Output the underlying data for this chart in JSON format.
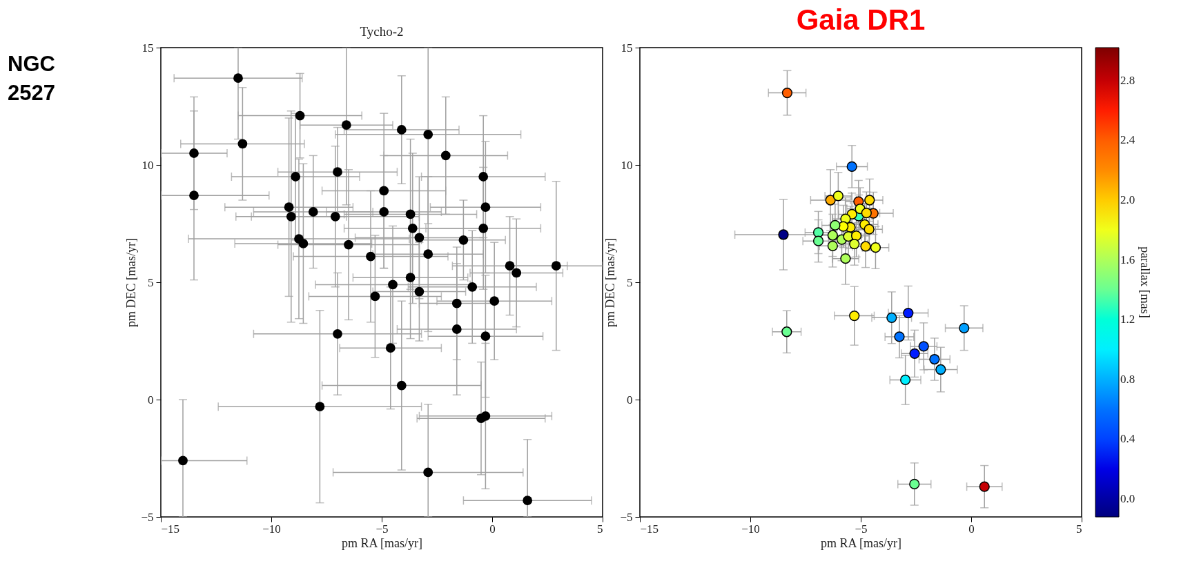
{
  "chart_data": [
    {
      "type": "scatter",
      "title": "Tycho-2",
      "xlabel": "pm RA [mas/yr]",
      "ylabel": "pm DEC [mas/yr]",
      "annotations": [
        "NGC 2527"
      ],
      "xlim": [
        -15,
        5
      ],
      "ylim": [
        -5,
        15
      ],
      "xticks": [
        -15,
        -10,
        -5,
        0,
        5
      ],
      "yticks": [
        -5,
        0,
        5,
        10,
        15
      ],
      "marker": "circle",
      "color": "#000000",
      "x": [
        -11.5,
        -13.5,
        -13.5,
        -11.3,
        -8.7,
        -6.6,
        -4.1,
        -2.9,
        -2.1,
        -8.9,
        -7.0,
        -0.4,
        -9.2,
        -9.1,
        -8.1,
        -7.1,
        -4.9,
        -4.9,
        -3.7,
        -3.6,
        -0.3,
        -0.4,
        -3.3,
        -8.75,
        -8.55,
        -6.5,
        -5.5,
        -2.9,
        -1.3,
        0.8,
        2.9,
        1.1,
        -5.3,
        -4.5,
        -3.7,
        -3.3,
        -0.9,
        -1.6,
        0.1,
        -1.6,
        -7.0,
        -4.6,
        -0.3,
        -4.1,
        -7.8,
        -0.3,
        -0.5,
        -14.0,
        -2.9,
        1.6
      ],
      "values": [
        13.7,
        10.5,
        8.7,
        10.9,
        12.1,
        11.7,
        11.5,
        11.3,
        10.4,
        9.5,
        9.7,
        9.5,
        8.2,
        7.8,
        8.0,
        7.8,
        8.9,
        8.0,
        7.9,
        7.3,
        8.2,
        7.3,
        6.9,
        6.85,
        6.65,
        6.6,
        6.1,
        6.2,
        6.8,
        5.7,
        5.7,
        5.4,
        4.4,
        4.9,
        5.2,
        4.6,
        4.8,
        4.1,
        4.2,
        3.0,
        2.8,
        2.2,
        2.7,
        0.6,
        -0.3,
        -0.7,
        -0.8,
        -2.6,
        -3.1,
        -4.3
      ],
      "errors": [
        [
          11.1,
          15
        ],
        2.4,
        3.6,
        2.4,
        1.8,
        [
          8.3,
          15
        ],
        2.3,
        [
          7.5,
          15
        ],
        2.5,
        2.7,
        1.9,
        2.6,
        3.8,
        4.5,
        2.4,
        3.0,
        3.3,
        2.4,
        3.2,
        3.2,
        2.8,
        2.6,
        2.6,
        3.4,
        3.4,
        3.2,
        2.8,
        3.3,
        1.7,
        2.1,
        3.6,
        2.3,
        2.6,
        2.5,
        2.6,
        2.1,
        2.4,
        2.4,
        2.5,
        2.8,
        2.6,
        2.6,
        2.6,
        3.6,
        4.1,
        3.1,
        2.4,
        [
          -5,
          0.0
        ],
        [
          -5,
          -0.2
        ],
        [
          -5,
          -1.7
        ]
      ],
      "xerrors": [
        2.9,
        1.5,
        [
          -15,
          -10.1
        ],
        2.8,
        2.8,
        2.1,
        2.6,
        4.2,
        2.8,
        2.9,
        2.7,
        2.8,
        2.9,
        2.5,
        2.7,
        3.8,
        2.8,
        2.6,
        3.0,
        3.1,
        2.5,
        2.6,
        2.9,
        5.0,
        3.1,
        3.2,
        3.5,
        2.5,
        1.9,
        2.6,
        2.1,
        2.1,
        3.0,
        3.5,
        2.6,
        2.1,
        2.9,
        1.7,
        2.6,
        2.7,
        3.8,
        2.3,
        2.6,
        3.6,
        4.6,
        3.0,
        2.9,
        [
          -15,
          -11.1
        ],
        4.3,
        2.9
      ]
    },
    {
      "type": "scatter",
      "title": "Gaia DR1",
      "xlabel": "pm RA [mas/yr]",
      "ylabel": "pm DEC [mas/yr]",
      "clabel": "parallax [mas]",
      "xlim": [
        -15,
        5
      ],
      "ylim": [
        -5,
        15
      ],
      "xticks": [
        -15,
        -10,
        -5,
        0,
        5
      ],
      "yticks": [
        -5,
        0,
        5,
        10,
        15
      ],
      "marker": "circle",
      "clim": [
        -0.12,
        3.02
      ],
      "cticks": [
        {
          "value": 0,
          "label": "0.0"
        },
        {
          "value": 0.4,
          "label": "0.4"
        },
        {
          "value": 0.8,
          "label": "0.8"
        },
        {
          "value": 1.2,
          "label": "1.2"
        },
        {
          "value": 1.6,
          "label": "1.6"
        },
        {
          "value": 2.0,
          "label": "2.0"
        },
        {
          "value": 2.4,
          "label": "2.4"
        },
        {
          "value": 2.8,
          "label": "2.8"
        }
      ],
      "x": [
        -8.33,
        -5.4,
        -8.5,
        -6.37,
        -6.02,
        -5.1,
        -4.6,
        -4.43,
        -5.09,
        -5.4,
        -5.03,
        -4.74,
        -5.69,
        -4.82,
        -4.62,
        -5.47,
        -5.79,
        -6.16,
        -6.92,
        -6.92,
        -6.27,
        -5.86,
        -5.56,
        -5.2,
        -5.29,
        -6.27,
        -5.69,
        -4.78,
        -4.33,
        -5.29,
        -8.35,
        -3.6,
        -2.85,
        -3.25,
        -2.15,
        -2.56,
        -1.66,
        -1.38,
        -2.98,
        -0.32,
        -2.57,
        0.6
      ],
      "values": [
        13.07,
        9.93,
        7.03,
        8.5,
        8.68,
        8.44,
        8.5,
        7.94,
        7.82,
        7.9,
        8.13,
        7.95,
        7.7,
        7.46,
        7.26,
        7.34,
        7.38,
        7.43,
        7.12,
        6.76,
        7.0,
        6.82,
        6.95,
        6.98,
        6.63,
        6.55,
        6.01,
        6.53,
        6.48,
        3.57,
        2.89,
        3.49,
        3.69,
        2.68,
        2.27,
        1.96,
        1.72,
        1.28,
        0.84,
        3.05,
        -3.6,
        -3.71
      ],
      "cvalues": [
        2.4,
        0.6,
        -0.1,
        2.1,
        1.8,
        2.4,
        1.95,
        2.3,
        1.3,
        1.9,
        1.8,
        1.95,
        1.8,
        1.9,
        1.95,
        1.9,
        1.85,
        1.5,
        1.35,
        1.4,
        1.6,
        1.6,
        1.75,
        1.9,
        1.75,
        1.6,
        1.6,
        1.95,
        1.8,
        1.9,
        1.4,
        0.8,
        0.3,
        0.6,
        0.45,
        0.3,
        0.6,
        0.8,
        1.0,
        0.75,
        1.4,
        2.8
      ],
      "errors": [
        0.95,
        0.9,
        1.5,
        1.3,
        1.0,
        0.9,
        0.9,
        0.9,
        0.9,
        0.9,
        0.9,
        0.9,
        0.9,
        0.9,
        0.9,
        0.9,
        0.9,
        0.9,
        0.9,
        0.9,
        0.9,
        0.9,
        0.9,
        0.9,
        0.9,
        0.9,
        1.1,
        0.9,
        0.9,
        1.25,
        0.9,
        1.1,
        1.15,
        0.9,
        1.0,
        1.0,
        0.9,
        0.95,
        1.05,
        0.95,
        0.9,
        0.9
      ],
      "xerrors": [
        0.85,
        0.7,
        2.2,
        0.9,
        0.6,
        0.6,
        0.6,
        0.9,
        0.6,
        0.6,
        0.6,
        0.6,
        0.6,
        0.6,
        0.6,
        0.6,
        0.6,
        0.6,
        0.6,
        0.7,
        0.6,
        0.6,
        0.6,
        0.6,
        0.6,
        0.6,
        0.6,
        0.6,
        0.6,
        0.9,
        0.65,
        0.9,
        0.9,
        0.65,
        0.6,
        0.6,
        0.7,
        0.75,
        0.7,
        0.85,
        0.75,
        0.8
      ]
    }
  ]
}
